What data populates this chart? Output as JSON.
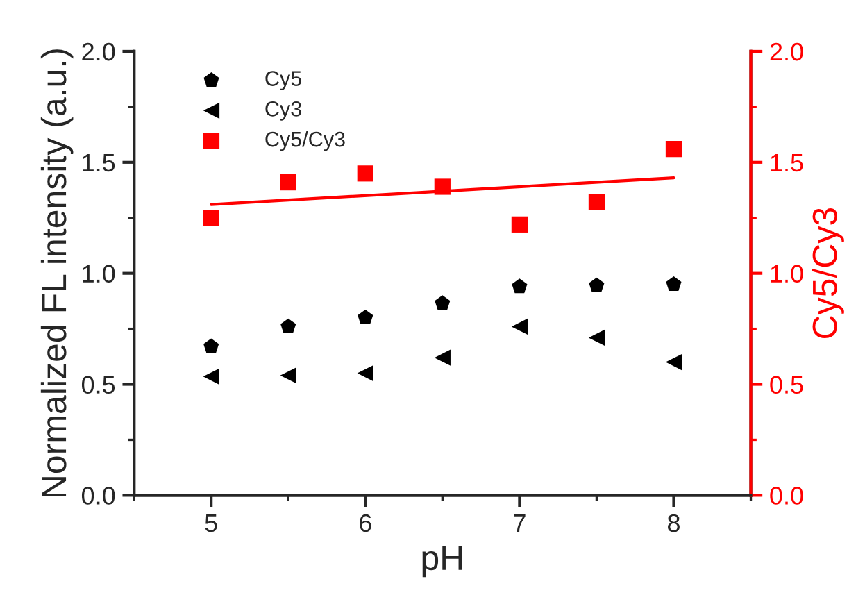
{
  "chart_data": {
    "type": "scatter",
    "xlabel": "pH",
    "ylabel": "Normalized FL intensity (a.u.)",
    "y2label": "Cy5/Cy3",
    "x": [
      5,
      5.5,
      6,
      6.5,
      7,
      7.5,
      8
    ],
    "series": [
      {
        "name": "Cy5",
        "color": "#000000",
        "values": [
          0.67,
          0.76,
          0.8,
          0.865,
          0.94,
          0.945,
          0.95
        ]
      },
      {
        "name": "Cy3",
        "color": "#000000",
        "marker": "triangle",
        "values": [
          0.535,
          0.54,
          0.55,
          0.62,
          0.76,
          0.71,
          0.6
        ]
      },
      {
        "name": "Cy5/Cy3",
        "color": "#ff0000",
        "marker": "square",
        "axis": "y2",
        "values": [
          1.25,
          1.41,
          1.45,
          1.39,
          1.22,
          1.32,
          1.56
        ]
      },
      {
        "type": "line",
        "color": "#ff0000",
        "axis": "y2",
        "x": [
          5,
          8
        ],
        "values": [
          1.31,
          1.43
        ]
      }
    ],
    "xlim": [
      4.5,
      8.5
    ],
    "xticks": [
      5,
      6,
      7,
      8
    ],
    "ylim": [
      0,
      2.0
    ],
    "yticks": [
      {
        "value": 0,
        "label": "0.0"
      },
      {
        "value": 0.5,
        "label": "0.5"
      },
      {
        "value": 1.0,
        "label": "1.0"
      },
      {
        "value": 1.5,
        "label": "1.5"
      },
      {
        "value": 2.0,
        "label": "2.0"
      }
    ],
    "y2lim": [
      0,
      2.0
    ],
    "y2ticks": [
      {
        "value": 0,
        "label": "0.0"
      },
      {
        "value": 0.5,
        "label": "0.5"
      },
      {
        "value": 1.0,
        "label": "1.0"
      },
      {
        "value": 1.5,
        "label": "1.5"
      },
      {
        "value": 2.0,
        "label": "2.0"
      }
    ],
    "legend": "top left",
    "grid": false
  }
}
